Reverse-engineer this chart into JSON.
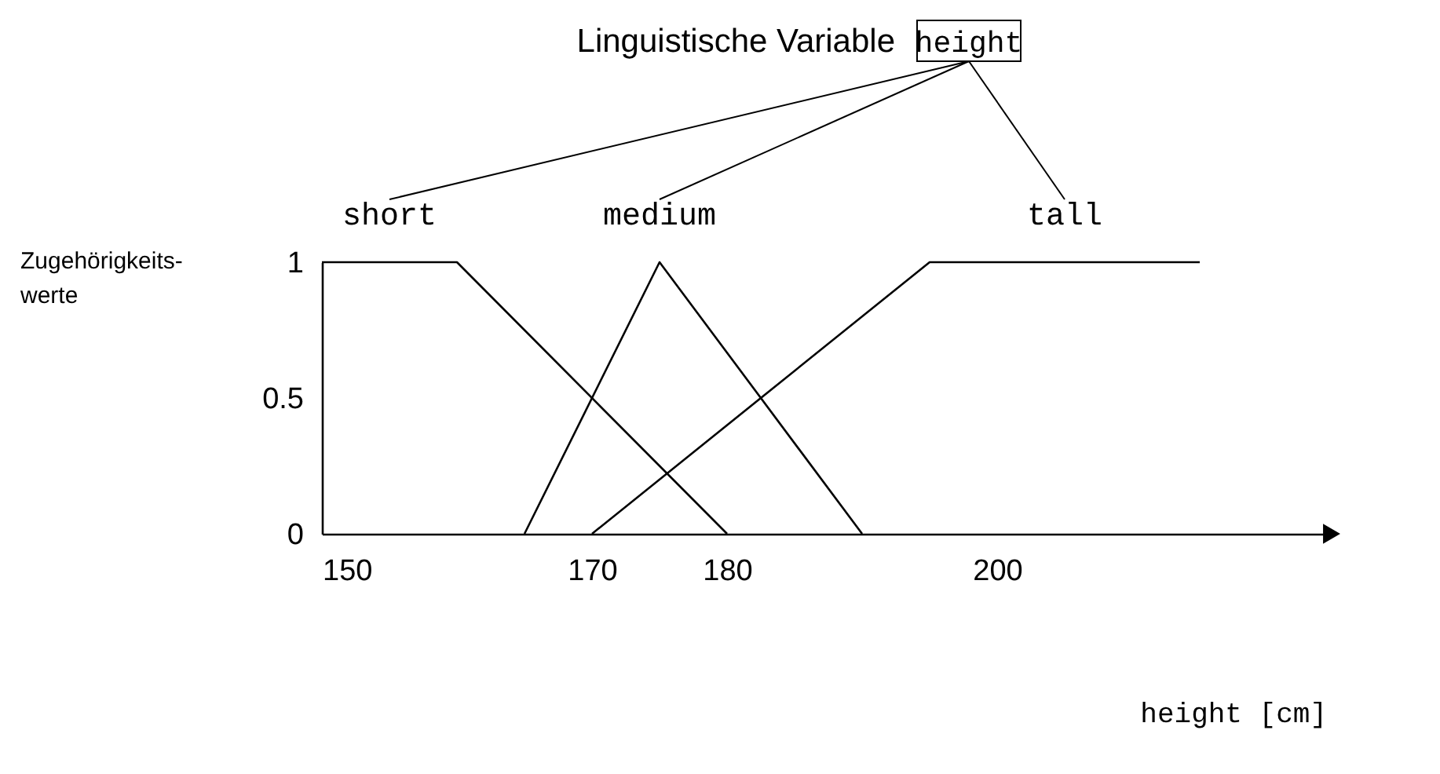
{
  "chart_data": {
    "type": "line",
    "title": "Linguistische Variable",
    "annotations": [
      "height"
    ],
    "xlabel": "height [cm]",
    "ylabel": "Zugehörigkeits-\nwerte",
    "series": [
      {
        "name": "short",
        "color": "#000000",
        "x": [
          150,
          160,
          180
        ],
        "values": [
          1,
          1,
          0
        ]
      },
      {
        "name": "medium",
        "color": "#000000",
        "x": [
          165,
          175,
          190
        ],
        "values": [
          0,
          1,
          0
        ]
      },
      {
        "name": "tall",
        "color": "#000000",
        "x": [
          170,
          195,
          215
        ],
        "values": [
          0,
          1,
          1
        ]
      }
    ],
    "xlim": [
      150,
      225
    ],
    "xticks": [
      150,
      170,
      180,
      200
    ],
    "ylim": [
      0,
      1
    ],
    "yticks": [
      0,
      0.5,
      1
    ],
    "grid": false,
    "legend": false,
    "marker": "none",
    "line_style": "solid"
  }
}
